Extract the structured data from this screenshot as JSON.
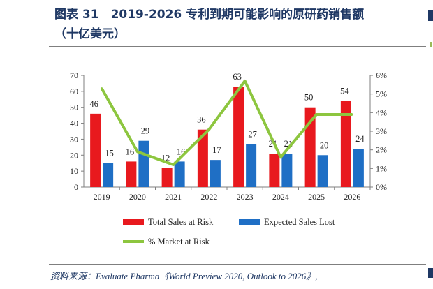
{
  "header": {
    "title_line1": "图表 31　2019-2026 专利到期可能影响的原研药销售额",
    "title_line2": "（十亿美元）"
  },
  "source": "资料来源：Evaluate Pharma《World Preview 2020, Outlook to 2026》,",
  "colors": {
    "total_sales": "#e8191e",
    "expected_lost": "#1f6fc5",
    "market_risk": "#8dc63f",
    "title": "#1f3864"
  },
  "chart_data": {
    "type": "bar",
    "categories": [
      "2019",
      "2020",
      "2021",
      "2022",
      "2023",
      "2024",
      "2025",
      "2026"
    ],
    "series": [
      {
        "name": "Total Sales at Risk",
        "type": "bar",
        "axis": "left",
        "values": [
          46,
          16,
          12,
          36,
          63,
          21,
          50,
          54
        ]
      },
      {
        "name": "Expected Sales Lost",
        "type": "bar",
        "axis": "left",
        "values": [
          15,
          29,
          16,
          17,
          27,
          21,
          20,
          24
        ]
      },
      {
        "name": "% Market at Risk",
        "type": "line",
        "axis": "right",
        "values": [
          5.3,
          1.9,
          1.2,
          3.1,
          5.7,
          1.6,
          3.9,
          3.9
        ]
      }
    ],
    "bar_labels": [
      [
        "46",
        "15"
      ],
      [
        "16",
        "29"
      ],
      [
        "12",
        "16"
      ],
      [
        "36",
        "17"
      ],
      [
        "63",
        "27"
      ],
      [
        "21",
        "21"
      ],
      [
        "50",
        "20"
      ],
      [
        "54",
        "24"
      ]
    ],
    "ylim": [
      0,
      70
    ],
    "yticks": [
      "0",
      "10",
      "20",
      "30",
      "40",
      "50",
      "60",
      "70"
    ],
    "y2lim": [
      0,
      6
    ],
    "y2ticks": [
      "0%",
      "1%",
      "2%",
      "3%",
      "4%",
      "5%",
      "6%"
    ],
    "grid": false,
    "legend_position": "bottom"
  }
}
